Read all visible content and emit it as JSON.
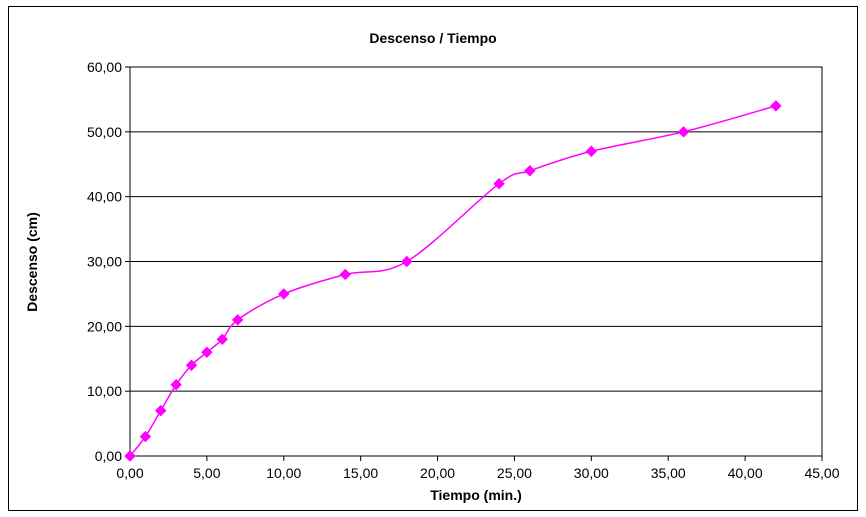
{
  "chart_data": {
    "type": "line",
    "title": "Descenso / Tiempo",
    "xlabel": "Tiempo (min.)",
    "ylabel": "Descenso (cm)",
    "xlim": [
      0,
      45
    ],
    "ylim": [
      0,
      60
    ],
    "x_ticks": [
      "0,00",
      "5,00",
      "10,00",
      "15,00",
      "20,00",
      "25,00",
      "30,00",
      "35,00",
      "40,00",
      "45,00"
    ],
    "y_ticks": [
      "0,00",
      "10,00",
      "20,00",
      "30,00",
      "40,00",
      "50,00",
      "60,00"
    ],
    "grid": "horizontal",
    "legend": "none",
    "series": [
      {
        "color": "#ff00ff",
        "marker": "diamond",
        "smooth": true,
        "x": [
          0,
          1,
          2,
          3,
          4,
          5,
          6,
          7,
          10,
          14,
          18,
          24,
          26,
          30,
          36,
          42
        ],
        "y": [
          0,
          3,
          7,
          11,
          14,
          16,
          18,
          21,
          25,
          28,
          30,
          42,
          44,
          47,
          50,
          54
        ]
      }
    ]
  }
}
